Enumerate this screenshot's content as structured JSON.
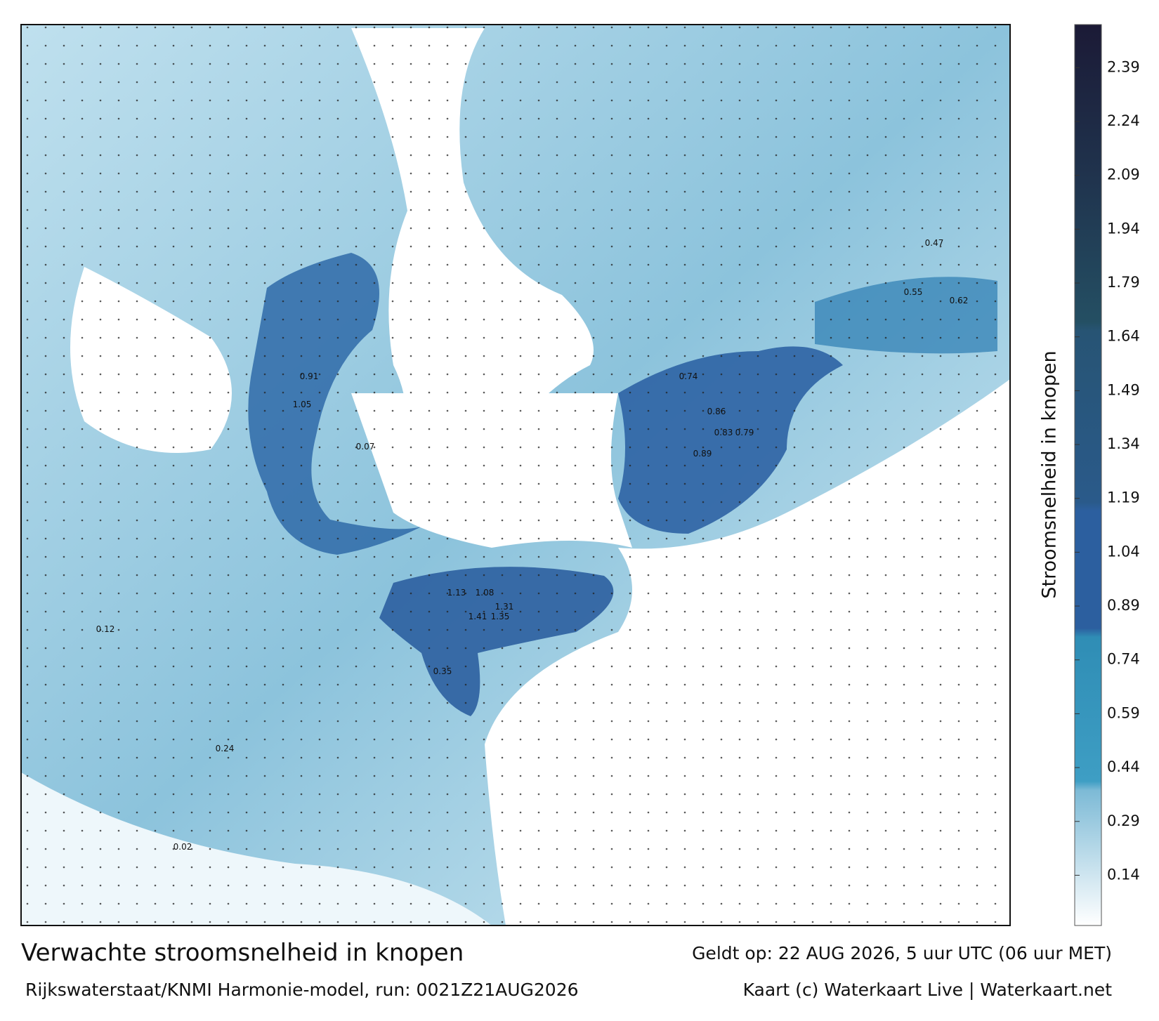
{
  "title": "Verwachte stroomsnelheid in knopen",
  "subtitle": "Rijkswaterstaat/KNMI Harmonie-model, run: 0021Z21AUG2026",
  "valid_time": "Geldt op: 22 AUG 2026, 5 uur UTC (06 uur MET)",
  "credit": "Kaart (c) Waterkaart Live | Waterkaart.net",
  "colorbar": {
    "label": "Stroomsnelheid in knopen",
    "range": [
      0,
      2.51
    ],
    "ticks": [
      0.14,
      0.29,
      0.44,
      0.59,
      0.74,
      0.89,
      1.04,
      1.19,
      1.34,
      1.49,
      1.64,
      1.79,
      1.94,
      2.09,
      2.24,
      2.39
    ]
  },
  "map": {
    "labels": [
      "1.41",
      "1.35",
      "1.13",
      "1.08",
      "1.31",
      "1.05",
      "0.91",
      "0.86",
      "0.89",
      "0.83",
      "0.79",
      "0.74",
      "0.62",
      "0.55",
      "0.47",
      "0.35",
      "0.24",
      "0.12",
      "0.07",
      "0.02"
    ]
  }
}
